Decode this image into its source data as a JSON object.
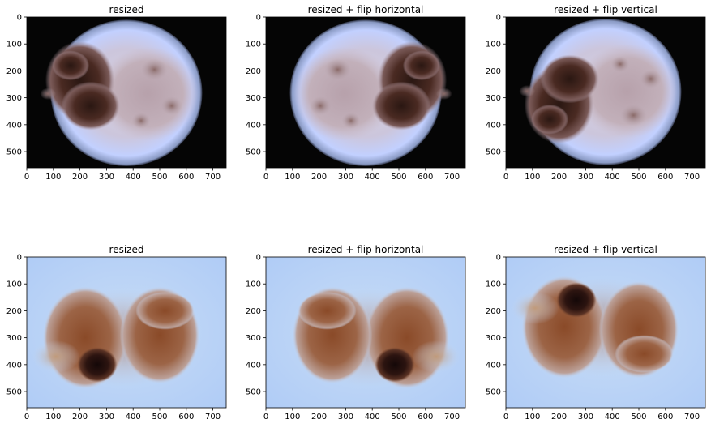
{
  "chart_data": [
    {
      "type": "image",
      "title": "resized",
      "lesion": "lesion-1",
      "transform": "none",
      "xlim": [
        0,
        750
      ],
      "ylim": [
        560,
        0
      ],
      "xticks": [
        "0",
        "100",
        "200",
        "300",
        "400",
        "500",
        "600",
        "700"
      ],
      "yticks": [
        "0",
        "100",
        "200",
        "300",
        "400",
        "500"
      ]
    },
    {
      "type": "image",
      "title": "resized + flip horizontal",
      "lesion": "lesion-1",
      "transform": "flip-horizontal",
      "xlim": [
        0,
        750
      ],
      "ylim": [
        560,
        0
      ],
      "xticks": [
        "0",
        "100",
        "200",
        "300",
        "400",
        "500",
        "600",
        "700"
      ],
      "yticks": [
        "0",
        "100",
        "200",
        "300",
        "400",
        "500"
      ]
    },
    {
      "type": "image",
      "title": "resized + flip vertical",
      "lesion": "lesion-1",
      "transform": "flip-vertical",
      "xlim": [
        0,
        750
      ],
      "ylim": [
        560,
        0
      ],
      "xticks": [
        "0",
        "100",
        "200",
        "300",
        "400",
        "500",
        "600",
        "700"
      ],
      "yticks": [
        "0",
        "100",
        "200",
        "300",
        "400",
        "500"
      ]
    },
    {
      "type": "image",
      "title": "resized",
      "lesion": "lesion-2",
      "transform": "none",
      "xlim": [
        0,
        750
      ],
      "ylim": [
        560,
        0
      ],
      "xticks": [
        "0",
        "100",
        "200",
        "300",
        "400",
        "500",
        "600",
        "700"
      ],
      "yticks": [
        "0",
        "100",
        "200",
        "300",
        "400",
        "500"
      ]
    },
    {
      "type": "image",
      "title": "resized + flip horizontal",
      "lesion": "lesion-2",
      "transform": "flip-horizontal",
      "xlim": [
        0,
        750
      ],
      "ylim": [
        560,
        0
      ],
      "xticks": [
        "0",
        "100",
        "200",
        "300",
        "400",
        "500",
        "600",
        "700"
      ],
      "yticks": [
        "0",
        "100",
        "200",
        "300",
        "400",
        "500"
      ]
    },
    {
      "type": "image",
      "title": "resized + flip vertical",
      "lesion": "lesion-2",
      "transform": "flip-vertical",
      "xlim": [
        0,
        750
      ],
      "ylim": [
        560,
        0
      ],
      "xticks": [
        "0",
        "100",
        "200",
        "300",
        "400",
        "500",
        "600",
        "700"
      ],
      "yticks": [
        "0",
        "100",
        "200",
        "300",
        "400",
        "500"
      ]
    }
  ]
}
